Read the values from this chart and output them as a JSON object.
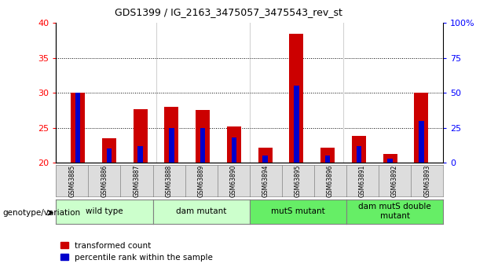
{
  "title": "GDS1399 / IG_2163_3475057_3475543_rev_st",
  "samples": [
    "GSM63885",
    "GSM63886",
    "GSM63887",
    "GSM63888",
    "GSM63889",
    "GSM63890",
    "GSM63894",
    "GSM63895",
    "GSM63896",
    "GSM63891",
    "GSM63892",
    "GSM63893"
  ],
  "red_values": [
    30.0,
    23.5,
    27.7,
    28.0,
    27.5,
    25.2,
    22.1,
    38.5,
    22.1,
    23.8,
    21.2,
    30.0
  ],
  "blue_values_pct": [
    50,
    10,
    12,
    25,
    25,
    18,
    5,
    55,
    5,
    12,
    3,
    30
  ],
  "ymin": 20,
  "ymax": 40,
  "yticks_left": [
    20,
    25,
    30,
    35,
    40
  ],
  "yticks_right_pct": [
    0,
    25,
    50,
    75,
    100
  ],
  "groups": [
    {
      "label": "wild type",
      "start": 0,
      "end": 3,
      "color": "#ccffcc"
    },
    {
      "label": "dam mutant",
      "start": 3,
      "end": 6,
      "color": "#ccffcc"
    },
    {
      "label": "mutS mutant",
      "start": 6,
      "end": 9,
      "color": "#66ee66"
    },
    {
      "label": "dam mutS double\nmutant",
      "start": 9,
      "end": 12,
      "color": "#66ee66"
    }
  ],
  "group_dividers": [
    3,
    6,
    9
  ],
  "red_color": "#cc0000",
  "blue_color": "#0000cc",
  "legend_red": "transformed count",
  "legend_blue": "percentile rank within the sample",
  "genotype_label": "genotype/variation"
}
